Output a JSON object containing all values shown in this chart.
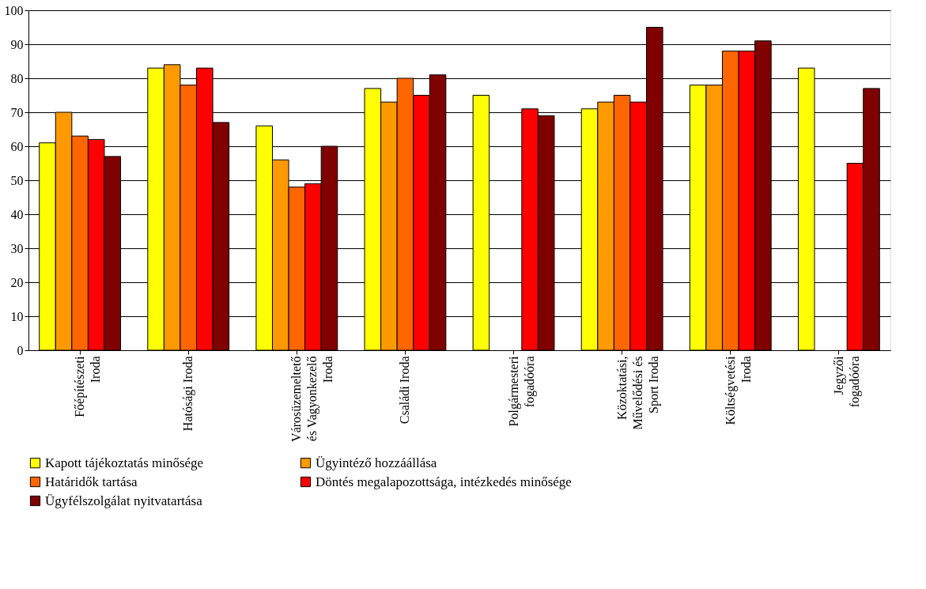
{
  "chart_data": {
    "type": "bar",
    "categories": [
      "Főépítészeti\nIroda",
      "Hatósági Iroda",
      "Városüzemeltető\nés Vagyonkezelő\nIroda",
      "Családi Iroda",
      "Polgármesteri\nfogadóóra",
      "Közoktatási,\nMűvelődési és\nSport Iroda",
      "Költségvetési\nIroda",
      "Jegyzői\nfogadóóra"
    ],
    "series": [
      {
        "name": "Kapott tájékoztatás minősége",
        "color": "#ffff00",
        "values": [
          61,
          83,
          66,
          77,
          75,
          71,
          78,
          83
        ]
      },
      {
        "name": "Ügyintéző hozzáállása",
        "color": "#ff9900",
        "values": [
          70,
          84,
          56,
          73,
          null,
          73,
          78,
          null
        ]
      },
      {
        "name": "Határidők tartása",
        "color": "#ff6600",
        "values": [
          63,
          78,
          48,
          80,
          null,
          75,
          88,
          null
        ]
      },
      {
        "name": "Döntés megalapozottsága, intézkedés minősége",
        "color": "#ff0000",
        "values": [
          62,
          83,
          49,
          75,
          71,
          73,
          88,
          55
        ]
      },
      {
        "name": "Ügyfélszolgálat nyitvatartása",
        "color": "#800000",
        "values": [
          57,
          67,
          60,
          81,
          69,
          95,
          91,
          77
        ]
      }
    ],
    "ylim": [
      0,
      100
    ],
    "yticks": [
      0,
      10,
      20,
      30,
      40,
      50,
      60,
      70,
      80,
      90,
      100
    ],
    "grid": "y",
    "legend": "bottom left"
  }
}
